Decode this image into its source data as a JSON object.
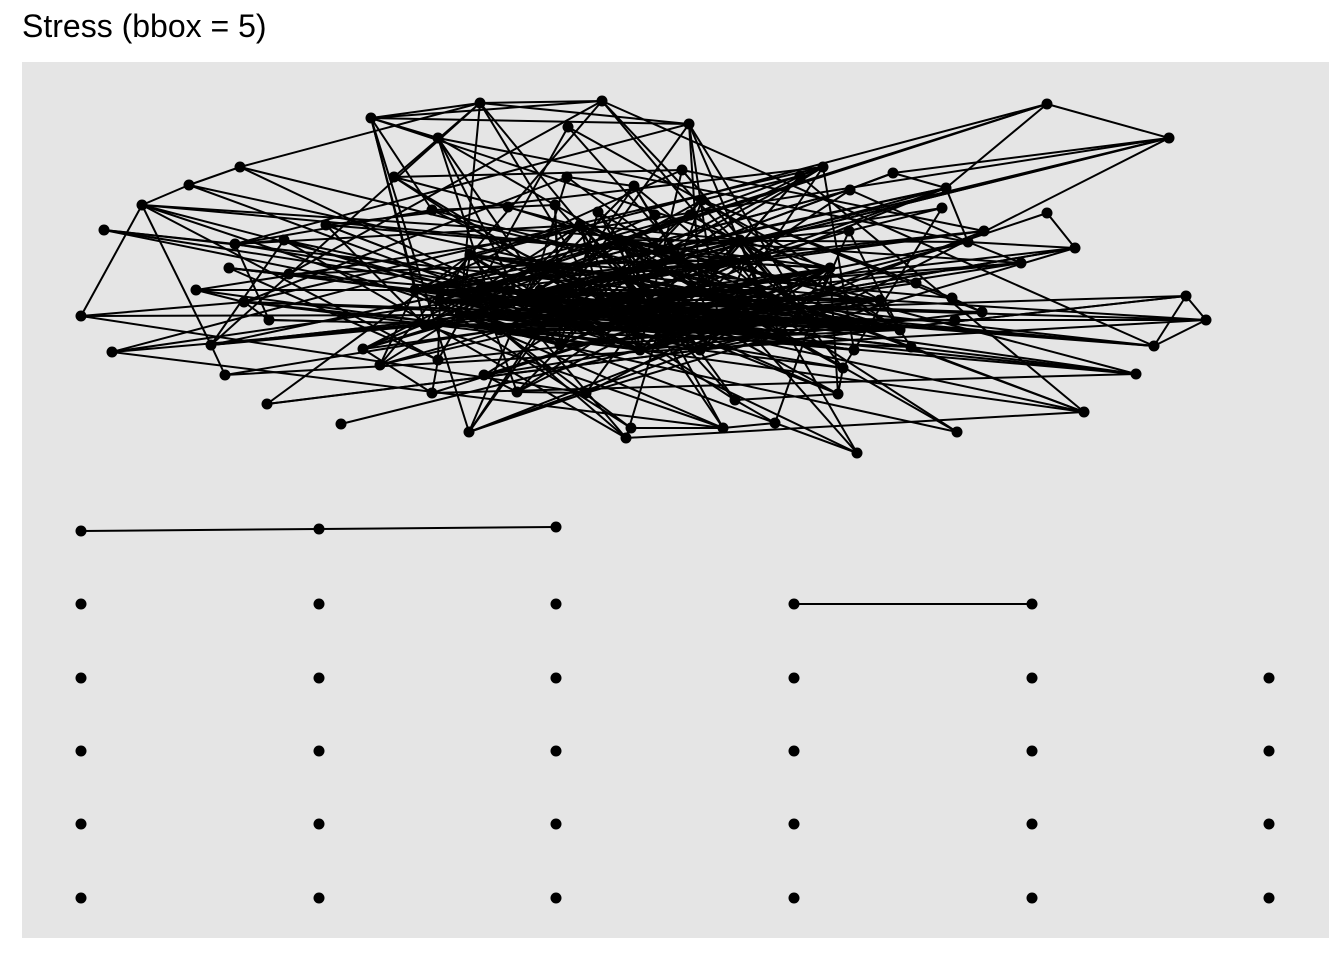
{
  "title": "Stress (bbox = 5)",
  "colors": {
    "panel_background": "#e5e5e5",
    "node": "#000000",
    "edge": "#000000"
  },
  "graph": {
    "layout": "stress",
    "bbox": 5,
    "axes_shown": false,
    "grid_shown": false,
    "main_component": {
      "edge_count": "dense (many overlapping edges)",
      "visible_node_count": 110
    },
    "small_components": [
      {
        "component": "path",
        "node_count": 3,
        "edge_count": 2
      },
      {
        "component": "pair",
        "node_count": 2,
        "edge_count": 1
      }
    ],
    "isolated_nodes": {
      "count": 27,
      "arrangement": "grid"
    }
  }
}
